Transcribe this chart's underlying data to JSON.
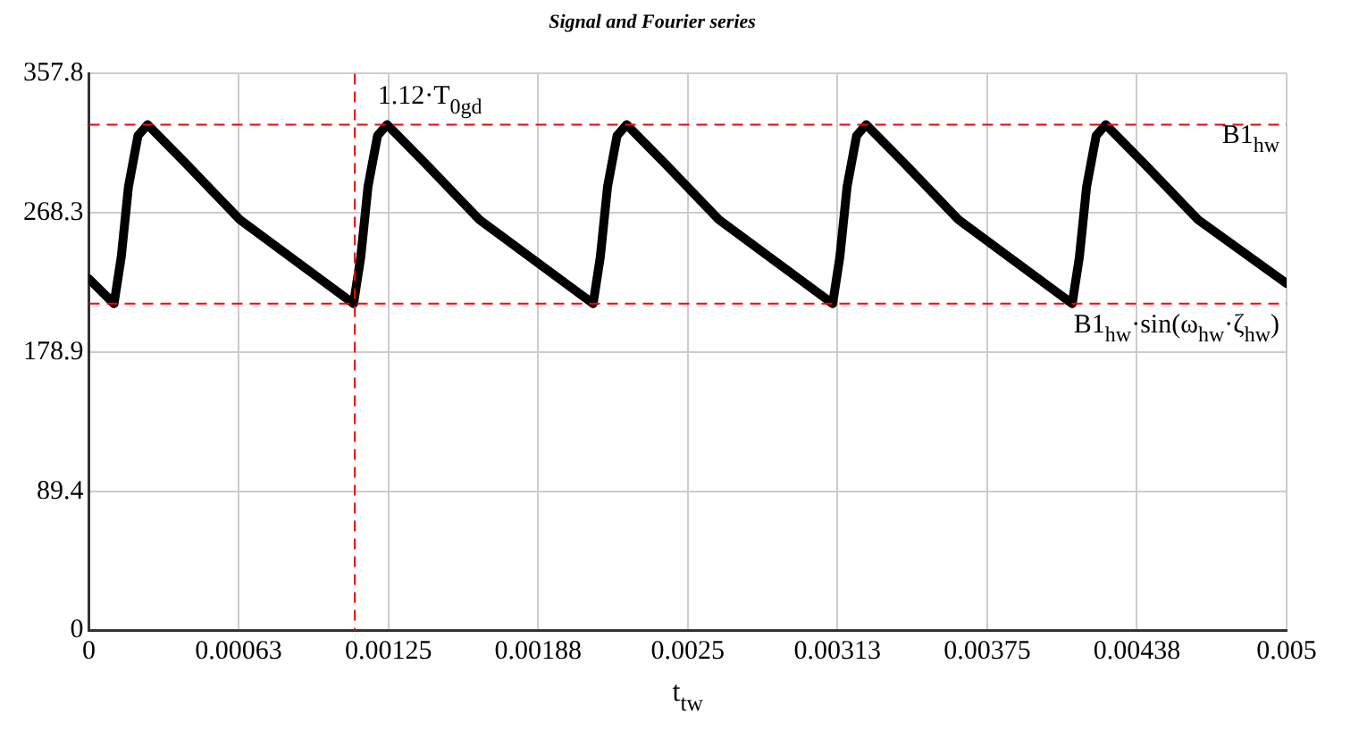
{
  "chart_data": {
    "type": "line",
    "title": "Signal and Fourier series",
    "xlabel": "t$_{tw}$",
    "x": [
      0,
      0.000105,
      0.000135,
      0.000165,
      0.000205,
      0.000245,
      0.000405,
      0.00063,
      0.000885,
      0.001105,
      0.001135,
      0.001165,
      0.001205,
      0.001245,
      0.001405,
      0.00163,
      0.001885,
      0.002105,
      0.002135,
      0.002165,
      0.002205,
      0.002245,
      0.002405,
      0.00263,
      0.002885,
      0.003105,
      0.003135,
      0.003165,
      0.003205,
      0.003245,
      0.003405,
      0.00363,
      0.003885,
      0.004105,
      0.004135,
      0.004165,
      0.004205,
      0.004245,
      0.004405,
      0.00463,
      0.005
    ],
    "series": [
      {
        "color": "#000000",
        "values": [
          226,
          210,
          240,
          285,
          318,
          325,
          300,
          264,
          235,
          210,
          240,
          285,
          318,
          325,
          300,
          264,
          235,
          210,
          240,
          285,
          318,
          325,
          300,
          264,
          235,
          210,
          240,
          285,
          318,
          325,
          300,
          264,
          235,
          210,
          240,
          285,
          318,
          325,
          300,
          264,
          223
        ]
      }
    ],
    "xlim": [
      0,
      0.005
    ],
    "xticks": [
      0,
      {
        "value": 0.000625,
        "label": "0.00063"
      },
      0.00125,
      {
        "value": 0.001875,
        "label": "0.00188"
      },
      0.0025,
      {
        "value": 0.003125,
        "label": "0.00313"
      },
      0.00375,
      {
        "value": 0.004375,
        "label": "0.00438"
      },
      0.005
    ],
    "ylim": [
      0,
      357.8
    ],
    "yticks": [
      0,
      89.4,
      178.9,
      268.3,
      357.8
    ],
    "ref_lines": [
      {
        "axis": "y",
        "value": 325,
        "label": "B1$_{hw}$",
        "color": "#ff0000",
        "line_style": "dashed"
      },
      {
        "axis": "y",
        "value": 210,
        "label": "B1$_{hw}$·sin(ω$_{hw}$·ζ$_{hw}$)",
        "color": "#ff0000",
        "line_style": "dashed"
      },
      {
        "axis": "x",
        "value": 0.00111,
        "label": "1.12·T$_{0gd}$",
        "color": "#ff0000",
        "line_style": "dashed"
      }
    ],
    "grid": true,
    "legend": false,
    "marker": "none",
    "line_style": "solid"
  }
}
